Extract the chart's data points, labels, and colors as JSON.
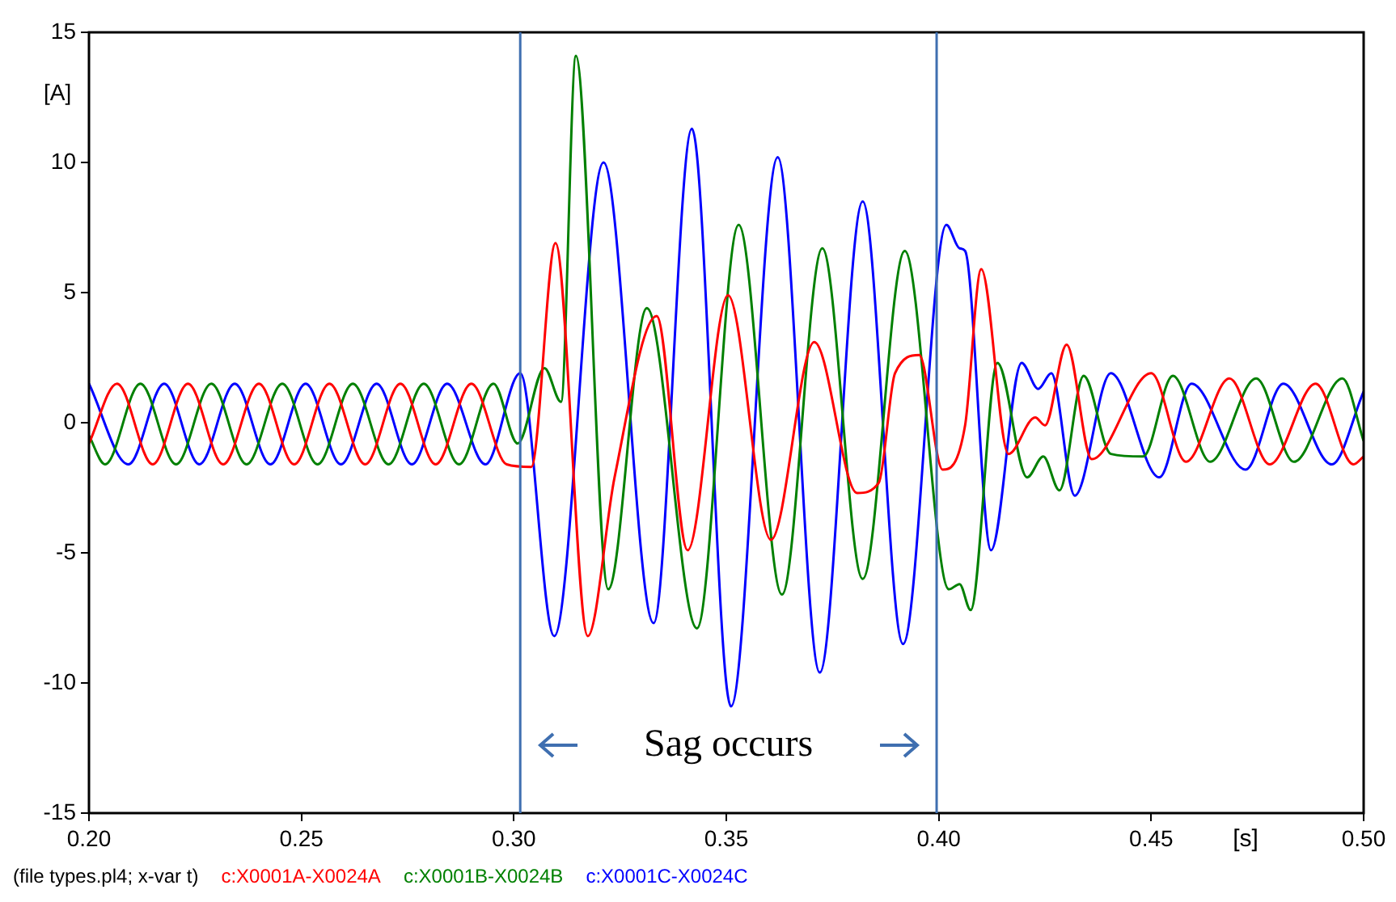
{
  "chart_data": {
    "type": "line",
    "ylabel": "[A]",
    "xlabel": "[s]",
    "xlim": [
      0.2,
      0.5
    ],
    "xticks": [
      {
        "value": 0.2,
        "label": "0.20"
      },
      {
        "value": 0.25,
        "label": "0.25"
      },
      {
        "value": 0.3,
        "label": "0.30"
      },
      {
        "value": 0.35,
        "label": "0.35"
      },
      {
        "value": 0.4,
        "label": "0.40"
      },
      {
        "value": 0.45,
        "label": "0.45"
      },
      {
        "value": 0.5,
        "label": "0.50"
      }
    ],
    "ylim": [
      -15,
      15
    ],
    "yticks": [
      -15,
      -10,
      -5,
      0,
      5,
      10,
      15
    ],
    "grid": false,
    "legend": "bottom",
    "marker": "none",
    "line_style": "solid",
    "ref_lines": [
      {
        "axis": "x",
        "value": 0.3015,
        "color": "#3f6fb0"
      },
      {
        "axis": "x",
        "value": 0.3995,
        "color": "#3f6fb0"
      }
    ],
    "annotations": [
      "Sag occurs",
      "(file types.pl4; x-var t)"
    ],
    "series": [
      {
        "name": "c:X0001A-X0024A",
        "color": "#ff0000",
        "x": [
          0.2,
          0.2066,
          0.215,
          0.2233,
          0.2316,
          0.24,
          0.2483,
          0.2566,
          0.265,
          0.2733,
          0.2816,
          0.29,
          0.2983,
          0.3041,
          0.3098,
          0.3174,
          0.3237,
          0.3336,
          0.3409,
          0.3504,
          0.3605,
          0.3707,
          0.3808,
          0.3859,
          0.3897,
          0.3954,
          0.4009,
          0.4062,
          0.41,
          0.4164,
          0.4227,
          0.425,
          0.4301,
          0.436,
          0.45,
          0.4582,
          0.4684,
          0.4779,
          0.4887,
          0.4976,
          0.5
        ],
        "values": [
          -0.8,
          1.5,
          -1.6,
          1.5,
          -1.6,
          1.5,
          -1.6,
          1.5,
          -1.6,
          1.5,
          -1.6,
          1.5,
          -1.6,
          -1.7,
          6.9,
          -8.2,
          -2.1,
          4.1,
          -4.9,
          4.9,
          -4.5,
          3.1,
          -2.7,
          -2.3,
          1.9,
          2.6,
          -1.8,
          -0.1,
          5.9,
          -1.2,
          0.2,
          -0.1,
          3.0,
          -1.4,
          1.9,
          -1.5,
          1.7,
          -1.6,
          1.5,
          -1.6,
          -1.3
        ]
      },
      {
        "name": "c:X0001B-X0024B",
        "color": "#008000",
        "x": [
          0.2,
          0.2038,
          0.2121,
          0.2205,
          0.2288,
          0.2371,
          0.2455,
          0.2538,
          0.2621,
          0.2705,
          0.2788,
          0.2871,
          0.2952,
          0.3009,
          0.3072,
          0.3111,
          0.3146,
          0.3222,
          0.3313,
          0.3431,
          0.3529,
          0.3631,
          0.3726,
          0.3821,
          0.392,
          0.4024,
          0.4049,
          0.4075,
          0.4138,
          0.4208,
          0.4246,
          0.4284,
          0.4341,
          0.4405,
          0.4481,
          0.4551,
          0.4639,
          0.4747,
          0.4836,
          0.495,
          0.5
        ],
        "values": [
          -0.5,
          -1.6,
          1.5,
          -1.6,
          1.5,
          -1.6,
          1.5,
          -1.6,
          1.5,
          -1.6,
          1.5,
          -1.6,
          1.5,
          -0.8,
          2.1,
          0.8,
          14.1,
          -6.4,
          4.4,
          -7.9,
          7.6,
          -6.6,
          6.7,
          -6.0,
          6.6,
          -6.4,
          -6.2,
          -7.2,
          2.3,
          -2.1,
          -1.3,
          -2.6,
          1.8,
          -1.2,
          -1.3,
          1.8,
          -1.5,
          1.7,
          -1.5,
          1.7,
          -0.7
        ]
      },
      {
        "name": "c:X0001C-X0024C",
        "color": "#0000ff",
        "x": [
          0.2,
          0.2093,
          0.2177,
          0.226,
          0.2343,
          0.2427,
          0.251,
          0.2593,
          0.2677,
          0.276,
          0.2843,
          0.2933,
          0.3015,
          0.3095,
          0.3211,
          0.3329,
          0.3419,
          0.3511,
          0.3621,
          0.372,
          0.3821,
          0.3916,
          0.4018,
          0.4049,
          0.4062,
          0.4123,
          0.4195,
          0.4234,
          0.4265,
          0.432,
          0.4405,
          0.4519,
          0.4595,
          0.4722,
          0.4811,
          0.4925,
          0.5
        ],
        "values": [
          1.5,
          -1.6,
          1.5,
          -1.6,
          1.5,
          -1.6,
          1.5,
          -1.6,
          1.5,
          -1.6,
          1.5,
          -1.6,
          1.9,
          -8.2,
          10.0,
          -7.7,
          11.3,
          -10.9,
          10.2,
          -9.6,
          8.5,
          -8.5,
          7.6,
          6.7,
          6.6,
          -4.9,
          2.3,
          1.3,
          1.9,
          -2.8,
          1.9,
          -2.1,
          1.5,
          -1.8,
          1.5,
          -1.6,
          1.2
        ]
      }
    ]
  }
}
